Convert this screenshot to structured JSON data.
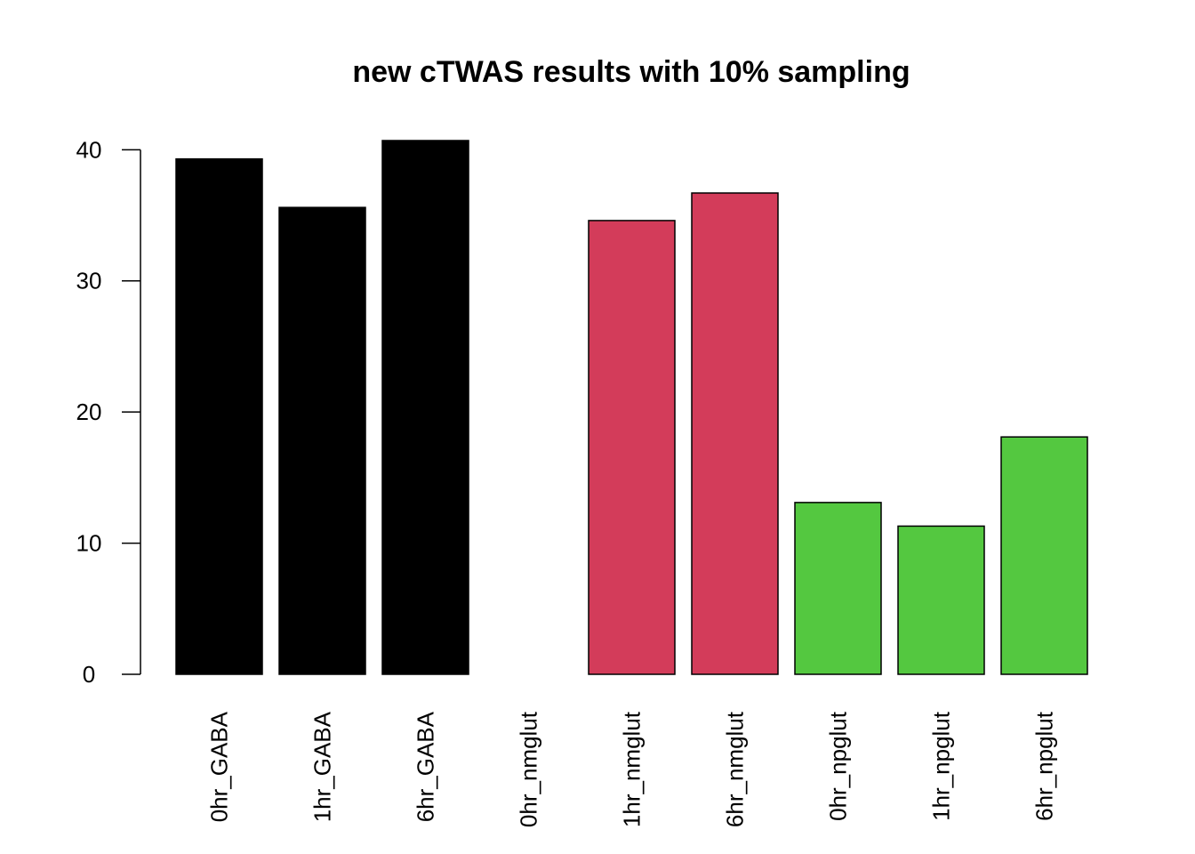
{
  "chart_data": {
    "type": "bar",
    "title": "new cTWAS results with 10% sampling",
    "xlabel": "",
    "ylabel": "",
    "categories": [
      "0hr_GABA",
      "1hr_GABA",
      "6hr_GABA",
      "0hr_nmglut",
      "1hr_nmglut",
      "6hr_nmglut",
      "0hr_npglut",
      "1hr_npglut",
      "6hr_npglut"
    ],
    "values": [
      39.3,
      35.6,
      40.7,
      0,
      34.6,
      36.7,
      13.1,
      11.3,
      18.1
    ],
    "colors": [
      "#000000",
      "#000000",
      "#000000",
      "#000000",
      "#D33C5A",
      "#D33C5A",
      "#54C840",
      "#54C840",
      "#54C840"
    ],
    "yticks": [
      0,
      10,
      20,
      30,
      40
    ],
    "ylim": [
      0,
      40.7
    ],
    "grid": false,
    "legend": "none"
  }
}
